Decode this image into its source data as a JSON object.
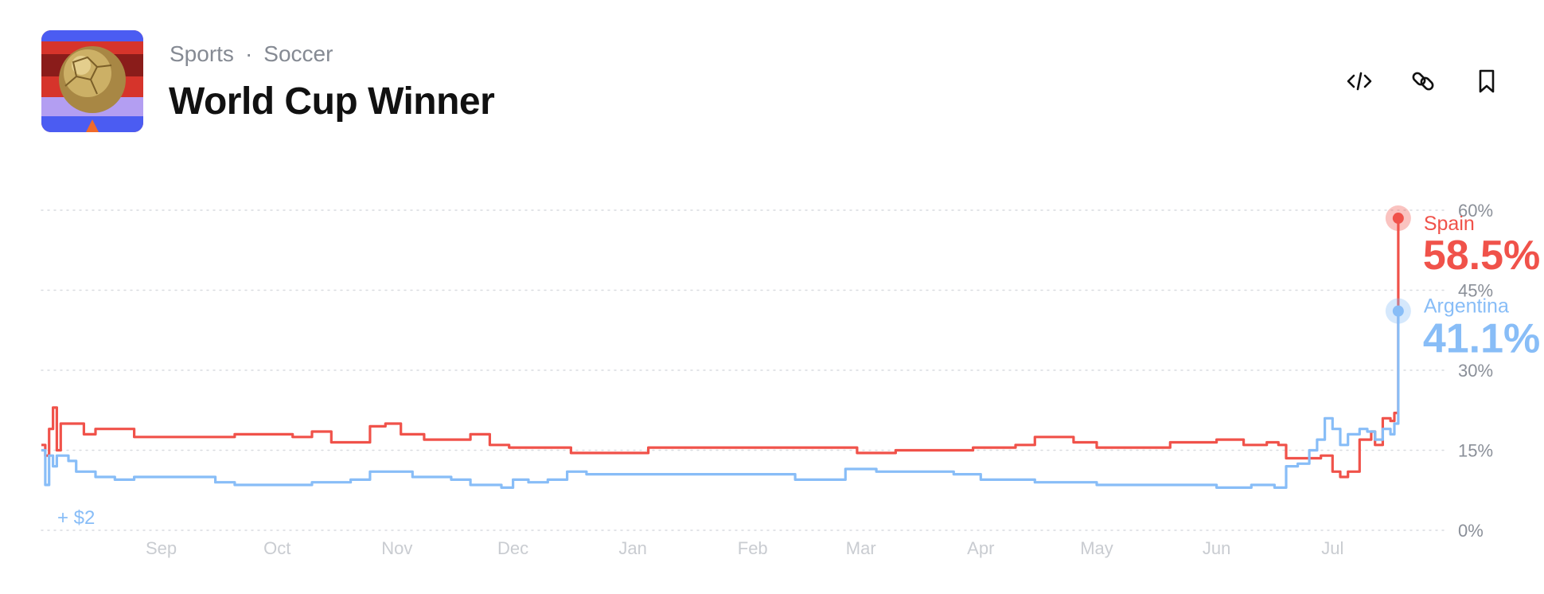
{
  "header": {
    "category": "Sports",
    "separator": "·",
    "subcategory": "Soccer",
    "title": "World Cup Winner"
  },
  "actions": {
    "embed_icon": "code-icon",
    "link_icon": "link-icon",
    "bookmark_icon": "bookmark-icon"
  },
  "colors": {
    "spain": "#f0524a",
    "argentina": "#88bdf7",
    "grid": "#d9dce0",
    "tick": "#8a8f98",
    "month": "#c9ccd1"
  },
  "chart_data": {
    "type": "line",
    "ylim": [
      0,
      60
    ],
    "y_ticks": [
      "0%",
      "15%",
      "30%",
      "45%",
      "60%"
    ],
    "y_tick_values": [
      0,
      15,
      30,
      45,
      60
    ],
    "x_month_labels": [
      "Sep",
      "Oct",
      "Nov",
      "Dec",
      "Jan",
      "Feb",
      "Mar",
      "Apr",
      "May",
      "Jun",
      "Jul"
    ],
    "legend_position": "right-end",
    "grid": true,
    "annotation": "+ $2",
    "series": [
      {
        "name": "Spain",
        "current_label": "58.5%",
        "points": [
          [
            "2025-08-01",
            16
          ],
          [
            "2025-08-02",
            14
          ],
          [
            "2025-08-03",
            19
          ],
          [
            "2025-08-04",
            23
          ],
          [
            "2025-08-05",
            15
          ],
          [
            "2025-08-06",
            20
          ],
          [
            "2025-08-10",
            20
          ],
          [
            "2025-08-12",
            18
          ],
          [
            "2025-08-15",
            19
          ],
          [
            "2025-08-20",
            19
          ],
          [
            "2025-08-25",
            17.5
          ],
          [
            "2025-09-10",
            17.5
          ],
          [
            "2025-09-20",
            18
          ],
          [
            "2025-10-05",
            17.5
          ],
          [
            "2025-10-10",
            18.5
          ],
          [
            "2025-10-15",
            16.5
          ],
          [
            "2025-10-25",
            19.5
          ],
          [
            "2025-10-29",
            20
          ],
          [
            "2025-11-02",
            18
          ],
          [
            "2025-11-08",
            17
          ],
          [
            "2025-11-15",
            17
          ],
          [
            "2025-11-20",
            18
          ],
          [
            "2025-11-25",
            16
          ],
          [
            "2025-11-30",
            15.5
          ],
          [
            "2025-12-05",
            15.5
          ],
          [
            "2025-12-16",
            14.5
          ],
          [
            "2026-01-01",
            14.5
          ],
          [
            "2026-01-05",
            15.5
          ],
          [
            "2026-02-15",
            15.5
          ],
          [
            "2026-02-22",
            15.5
          ],
          [
            "2026-02-28",
            14.5
          ],
          [
            "2026-03-10",
            15
          ],
          [
            "2026-03-30",
            15.5
          ],
          [
            "2026-04-10",
            16
          ],
          [
            "2026-04-15",
            17.5
          ],
          [
            "2026-04-25",
            16.5
          ],
          [
            "2026-05-01",
            15.5
          ],
          [
            "2026-05-15",
            15.5
          ],
          [
            "2026-05-20",
            16.5
          ],
          [
            "2026-06-01",
            17
          ],
          [
            "2026-06-08",
            16
          ],
          [
            "2026-06-14",
            16.5
          ],
          [
            "2026-06-17",
            16
          ],
          [
            "2026-06-19",
            13.5
          ],
          [
            "2026-06-25",
            13.5
          ],
          [
            "2026-06-28",
            14
          ],
          [
            "2026-07-01",
            11
          ],
          [
            "2026-07-03",
            10
          ],
          [
            "2026-07-05",
            11
          ],
          [
            "2026-07-08",
            17
          ],
          [
            "2026-07-11",
            18.5
          ],
          [
            "2026-07-12",
            16
          ],
          [
            "2026-07-14",
            21
          ],
          [
            "2026-07-16",
            20.5
          ],
          [
            "2026-07-17",
            22
          ],
          [
            "2026-07-18",
            28
          ],
          [
            "2026-07-18",
            58.5
          ]
        ]
      },
      {
        "name": "Argentina",
        "current_label": "41.1%",
        "points": [
          [
            "2025-08-01",
            15
          ],
          [
            "2025-08-02",
            8.5
          ],
          [
            "2025-08-03",
            14
          ],
          [
            "2025-08-04",
            12
          ],
          [
            "2025-08-05",
            14
          ],
          [
            "2025-08-08",
            13
          ],
          [
            "2025-08-10",
            11
          ],
          [
            "2025-08-15",
            10
          ],
          [
            "2025-08-20",
            9.5
          ],
          [
            "2025-08-25",
            10
          ],
          [
            "2025-09-10",
            10
          ],
          [
            "2025-09-15",
            9
          ],
          [
            "2025-09-20",
            8.5
          ],
          [
            "2025-10-10",
            9
          ],
          [
            "2025-10-20",
            9.5
          ],
          [
            "2025-10-25",
            11
          ],
          [
            "2025-10-30",
            11
          ],
          [
            "2025-11-05",
            10
          ],
          [
            "2025-11-15",
            9.5
          ],
          [
            "2025-11-20",
            8.5
          ],
          [
            "2025-11-28",
            8
          ],
          [
            "2025-12-01",
            9.5
          ],
          [
            "2025-12-05",
            9
          ],
          [
            "2025-12-10",
            9.5
          ],
          [
            "2025-12-15",
            11
          ],
          [
            "2025-12-20",
            10.5
          ],
          [
            "2026-01-10",
            10.5
          ],
          [
            "2026-02-05",
            10.5
          ],
          [
            "2026-02-12",
            9.5
          ],
          [
            "2026-02-22",
            9.5
          ],
          [
            "2026-02-25",
            11.5
          ],
          [
            "2026-03-01",
            11.5
          ],
          [
            "2026-03-05",
            11
          ],
          [
            "2026-03-20",
            11
          ],
          [
            "2026-03-25",
            10.5
          ],
          [
            "2026-04-01",
            9.5
          ],
          [
            "2026-04-15",
            9
          ],
          [
            "2026-05-01",
            8.5
          ],
          [
            "2026-05-25",
            8.5
          ],
          [
            "2026-06-01",
            8
          ],
          [
            "2026-06-10",
            8.5
          ],
          [
            "2026-06-16",
            8
          ],
          [
            "2026-06-18",
            8
          ],
          [
            "2026-06-19",
            12
          ],
          [
            "2026-06-22",
            12.5
          ],
          [
            "2026-06-25",
            15
          ],
          [
            "2026-06-27",
            17
          ],
          [
            "2026-06-29",
            21
          ],
          [
            "2026-07-01",
            19
          ],
          [
            "2026-07-03",
            16
          ],
          [
            "2026-07-05",
            18
          ],
          [
            "2026-07-08",
            19
          ],
          [
            "2026-07-10",
            18.5
          ],
          [
            "2026-07-12",
            17
          ],
          [
            "2026-07-14",
            19
          ],
          [
            "2026-07-16",
            18
          ],
          [
            "2026-07-17",
            20
          ],
          [
            "2026-07-18",
            41.1
          ]
        ]
      }
    ]
  }
}
